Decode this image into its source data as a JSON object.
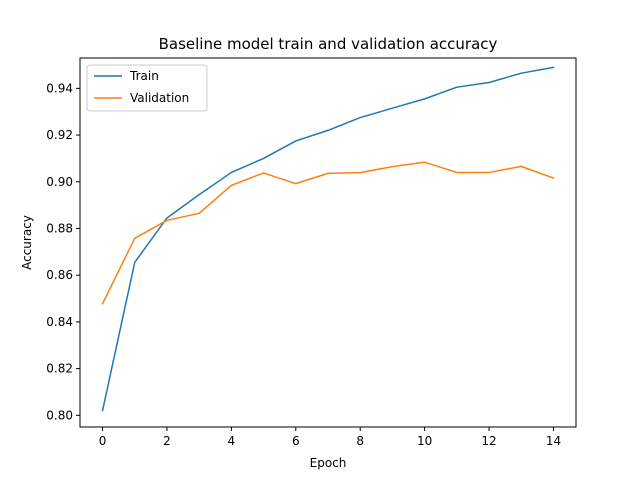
{
  "chart_data": {
    "type": "line",
    "title": "Baseline model train and validation accuracy",
    "xlabel": "Epoch",
    "ylabel": "Accuracy",
    "xlim": [
      -0.7,
      14.7
    ],
    "ylim": [
      0.795,
      0.953
    ],
    "xticks": [
      0,
      2,
      4,
      6,
      8,
      10,
      12,
      14
    ],
    "yticks": [
      0.8,
      0.82,
      0.84,
      0.86,
      0.88,
      0.9,
      0.92,
      0.94
    ],
    "ytick_labels": [
      "0.80",
      "0.82",
      "0.84",
      "0.86",
      "0.88",
      "0.90",
      "0.92",
      "0.94"
    ],
    "x": [
      0,
      1,
      2,
      3,
      4,
      5,
      6,
      7,
      8,
      9,
      10,
      11,
      12,
      13,
      14
    ],
    "series": [
      {
        "name": "Train",
        "color": "#1f77b4",
        "values": [
          0.802,
          0.8655,
          0.8845,
          0.8945,
          0.904,
          0.91,
          0.9175,
          0.922,
          0.9275,
          0.9315,
          0.9355,
          0.9405,
          0.9425,
          0.9465,
          0.949
        ]
      },
      {
        "name": "Validation",
        "color": "#ff7f0e",
        "values": [
          0.8478,
          0.8758,
          0.8835,
          0.8865,
          0.8985,
          0.9038,
          0.8992,
          0.9036,
          0.9039,
          0.9065,
          0.9084,
          0.904,
          0.904,
          0.9066,
          0.9016
        ]
      }
    ],
    "legend": {
      "position": "top-left"
    },
    "grid": false
  }
}
